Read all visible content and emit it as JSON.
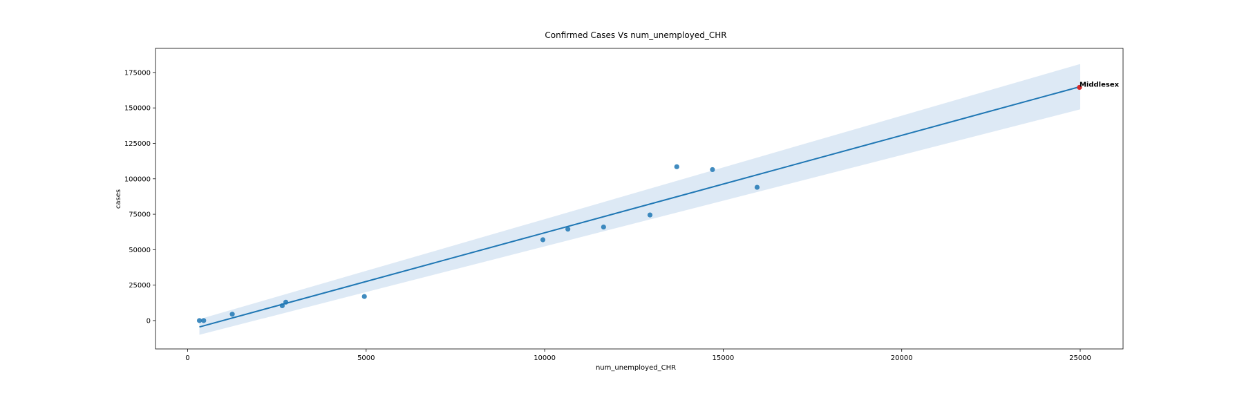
{
  "chart_data": {
    "type": "scatter",
    "title": "Confirmed Cases Vs num_unemployed_CHR",
    "xlabel": "num_unemployed_CHR",
    "ylabel": "cases",
    "xlim": [
      -900,
      26200
    ],
    "ylim": [
      -20000,
      192000
    ],
    "xticks": [
      0,
      5000,
      10000,
      15000,
      20000,
      25000
    ],
    "yticks": [
      0,
      25000,
      50000,
      75000,
      100000,
      125000,
      150000,
      175000
    ],
    "grid": false,
    "point_color": "#1f77b4",
    "highlight_color": "#d62728",
    "band_color": "#c6dbef",
    "points": [
      {
        "x": 330,
        "y": 0
      },
      {
        "x": 450,
        "y": 0
      },
      {
        "x": 1250,
        "y": 4500
      },
      {
        "x": 2650,
        "y": 10500
      },
      {
        "x": 2750,
        "y": 13000
      },
      {
        "x": 4950,
        "y": 17000
      },
      {
        "x": 9950,
        "y": 57000
      },
      {
        "x": 10650,
        "y": 64500
      },
      {
        "x": 11650,
        "y": 66000
      },
      {
        "x": 12950,
        "y": 74500
      },
      {
        "x": 13700,
        "y": 108500
      },
      {
        "x": 14700,
        "y": 106500
      },
      {
        "x": 15950,
        "y": 94000
      },
      {
        "x": 24980,
        "y": 164500,
        "highlight": true
      }
    ],
    "regression": {
      "x": [
        330,
        25000
      ],
      "y": [
        -4500,
        165000
      ],
      "ci_lower": [
        -10000,
        149000
      ],
      "ci_upper": [
        1000,
        181000
      ]
    },
    "annotations": [
      {
        "text": "Middlesex",
        "x": 24980,
        "y": 164500
      }
    ]
  }
}
